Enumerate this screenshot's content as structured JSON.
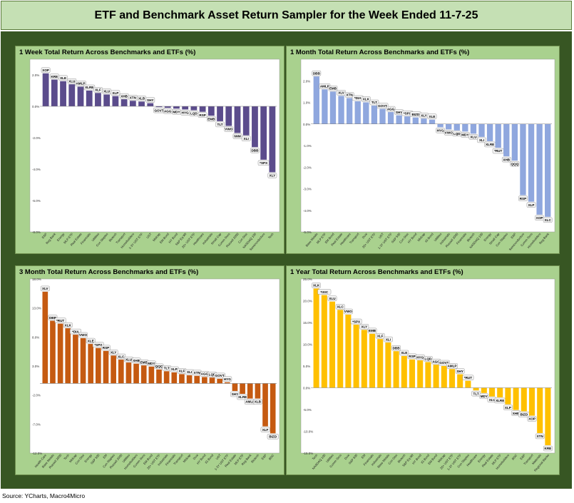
{
  "title": "ETF and Benchmark Asset Return Sampler for the Week Ended 11-7-25",
  "source": "Source: YCharts, Macro4Micro",
  "colors": {
    "purple": "#5b4c8c",
    "blue": "#8fa7de",
    "orange": "#c55a11",
    "gold": "#ffc000"
  },
  "chart_data": [
    {
      "type": "bar",
      "title": "1 Week Total Return Across Benchmarks and ETFs (%)",
      "color": "#5b4c8c",
      "ylim": [
        -8,
        3
      ],
      "yticks": [
        -8,
        -6,
        -4,
        -2,
        0,
        2
      ],
      "yticklabels": [
        "-8.0%",
        "-6.0%",
        "-4.0%",
        "-2.0%",
        "0.0%",
        "2.0%"
      ],
      "categories": [
        "E&P",
        "Reg Bank",
        "Energy",
        "MLP ETF",
        "Real Estate",
        "Financials",
        "Utilities",
        "Con Staples",
        "Biotech",
        "Transport",
        "Homebuilders",
        "1-3Y UST ETF",
        "UST",
        "Midcap",
        "EM Bond",
        "HY Bond",
        "S&P Eq Wt",
        "20+ UST ETF",
        "Healthcare",
        "Industrials",
        "Small Cap",
        "Comm Svcs",
        "Russell 2000",
        "Con Disc",
        "NASDAQ 100",
        "Semiconductors",
        "Tech"
      ],
      "values": [
        2.1,
        1.7,
        1.6,
        1.4,
        1.25,
        1.0,
        0.85,
        0.75,
        0.65,
        0.45,
        0.35,
        0.3,
        0.2,
        -0.05,
        -0.1,
        -0.15,
        -0.2,
        -0.25,
        -0.35,
        -0.6,
        -0.95,
        -1.25,
        -1.7,
        -1.85,
        -2.6,
        -3.4,
        -4.2
      ],
      "labels": [
        "XOP",
        "KRE",
        "XLE",
        "XLU",
        "AMLP",
        "XLRE",
        "XLF",
        "XLU",
        "XLP",
        "XHB",
        "XTN",
        "XLB",
        "SHY",
        "GOVT",
        "AGG",
        "MDY",
        "HYG",
        "LQD",
        "RSP",
        "EMB",
        "TLT",
        "VWO",
        "IWM",
        "XLI",
        "DBB",
        "*SPX",
        "XLY"
      ]
    },
    {
      "type": "bar",
      "title": "1 Month Total Return Across Benchmarks and ETFs (%)",
      "color": "#8fa7de",
      "ylim": [
        -5,
        3
      ],
      "yticks": [
        -5,
        -4,
        -3,
        -2,
        -1,
        0,
        1,
        2
      ],
      "yticklabels": [
        "-5.0%",
        "-4.0%",
        "-3.0%",
        "-2.0%",
        "-1.0%",
        "0.0%",
        "1.0%",
        "2.0%"
      ],
      "categories": [
        "Base Metals",
        "MLP ETF",
        "EM Bond",
        "Real Estate",
        "Healthcare",
        "Transport",
        "Dow",
        "20+ UST ETF",
        "UST",
        "1-3Y UST ETF",
        "S&P 500",
        "Con Disc",
        "HY Bond",
        "Midcap",
        "IG Bond",
        "Utilities",
        "Industrials",
        "Russell 2000",
        "Financials",
        "Biotech",
        "NASDAQ 100",
        "Energy",
        "Small Cap",
        "Con Staples",
        "E&P",
        "Semiconductors",
        "Comm Svcs",
        "Homebuilders",
        "Reg Bank"
      ],
      "values": [
        2.2,
        1.6,
        1.5,
        1.3,
        1.2,
        1.05,
        1.0,
        0.85,
        0.7,
        0.55,
        0.4,
        0.35,
        0.3,
        0.25,
        0.2,
        -0.15,
        -0.25,
        -0.3,
        -0.35,
        -0.45,
        -0.6,
        -0.8,
        -1.1,
        -1.5,
        -1.7,
        -3.3,
        -3.6,
        -4.2,
        -4.3
      ],
      "labels": [
        "DBB",
        "AMLP",
        "EMB",
        "XLV",
        "XTN",
        "*DIA",
        "XLK",
        "TLT",
        "GOVT",
        "AGG",
        "SHY",
        "*SPX",
        "BIZD",
        "XLY",
        "XLE",
        "HYG",
        "VWO",
        "LQD",
        "MDY",
        "XLU",
        "XLI",
        "XLRE",
        "*RUT",
        "XHB",
        "QQQ",
        "RSP",
        "XLP",
        "XOP",
        "XLC"
      ]
    },
    {
      "type": "bar",
      "title": "3 Month Total Return Across Benchmarks and ETFs (%)",
      "color": "#c55a11",
      "ylim": [
        -12,
        18
      ],
      "yticks": [
        -12,
        -7,
        -2,
        3,
        8,
        13,
        18
      ],
      "yticklabels": [
        "-12.0%",
        "-7.0%",
        "-2.0%",
        "3.0%",
        "8.0%",
        "13.0%",
        "18.0%"
      ],
      "categories": [
        "Health Care",
        "Base Metals",
        "Russell 2000",
        "Tech",
        "Midcap",
        "Con Disc",
        "Energy",
        "S&P 500",
        "EM",
        "Con Staples",
        "Russell 2000",
        "Utilities",
        "Homebuilders",
        "Comm Svcs",
        "EM Bond",
        "20+ UST ETF",
        "Industrials",
        "Financials",
        "Transport",
        "Midcap",
        "Dow",
        "HY Bond",
        "IG Bond",
        "UST",
        "1-3Y UST ETF",
        "Real Estate",
        "MLP ETF",
        "Reg Bank",
        "Biotech",
        "E&P",
        "BDC"
      ],
      "values": [
        15.8,
        10.8,
        10.3,
        9.5,
        8.4,
        7.8,
        6.8,
        6.1,
        5.6,
        4.8,
        4.1,
        3.6,
        3.4,
        3.1,
        2.9,
        2.4,
        2.1,
        1.9,
        1.6,
        1.4,
        1.3,
        1.1,
        1.0,
        0.8,
        0.2,
        -1.3,
        -1.8,
        -2.6,
        -2.6,
        -7.4,
        -8.6
      ],
      "labels": [
        "XLV",
        "DBB",
        "*RUT",
        "XLK",
        "*DIA",
        "VWO",
        "XLE",
        "*SPX",
        "RSP",
        "XLY",
        "XLC",
        "XLU",
        "XHB",
        "EMB",
        "MDY",
        "QQQ",
        "TLT",
        "XLP",
        "XLF",
        "XLI",
        "XTN",
        "AGG",
        "LQD",
        "GOVT",
        "HYG",
        "SHY",
        "XLRE",
        "AMLP",
        "XLB",
        "XLF",
        "BIZD"
      ]
    },
    {
      "type": "bar",
      "title": "1 Year Total Return Across Benchmarks and ETFs (%)",
      "color": "#ffc000",
      "ylim": [
        -15,
        25
      ],
      "yticks": [
        -15,
        -10,
        -5,
        0,
        5,
        10,
        15,
        20,
        25
      ],
      "yticklabels": [
        "-15.0%",
        "-10.0%",
        "-5.0%",
        "0.0%",
        "5.0%",
        "10.0%",
        "15.0%",
        "20.0%",
        "25.0%"
      ],
      "categories": [
        "Tech",
        "NASDAQ 100",
        "Utilities",
        "Comm Svcs",
        "Dow",
        "S&P 500",
        "EM",
        "Financials",
        "Industrials",
        "Base Metals",
        "Con Disc",
        "Biotech",
        "S&P Eq Wt",
        "HY Bond",
        "IG Bond",
        "EM Bond",
        "Midcap",
        "20+ UST ETF",
        "1-3Y UST ETF",
        "Con Staples",
        "Healthcare",
        "Energy",
        "Real Estate",
        "MLP ETF",
        "Homebuilders",
        "BDC",
        "E&P",
        "Transport",
        "Materials",
        "Regional Banks"
      ],
      "values": [
        22.8,
        21.3,
        19.8,
        17.9,
        16.8,
        14.5,
        13.3,
        12.4,
        11.2,
        10.4,
        8.4,
        7.3,
        6.5,
        6.3,
        5.9,
        5.3,
        5.0,
        4.3,
        3.1,
        1.6,
        -0.6,
        -1.2,
        -2.0,
        -2.2,
        -3.8,
        -5.1,
        -5.4,
        -6.4,
        -10.4,
        -13.2
      ],
      "labels": [
        "XLK",
        "*IXIC",
        "XLU",
        "XLC",
        "VWO",
        "*SPX",
        "XLY",
        "EMB",
        "XLF",
        "XLI",
        "DBB",
        "XLE",
        "RSP",
        "HYG",
        "LQD",
        "AGG",
        "GOVT",
        "AMLP",
        "SHY",
        "*RUT",
        "TLT",
        "MDY",
        "XLV",
        "XLRE",
        "XLP",
        "XHB",
        "BIZD",
        "XOP",
        "XTN",
        "KRE"
      ]
    }
  ]
}
